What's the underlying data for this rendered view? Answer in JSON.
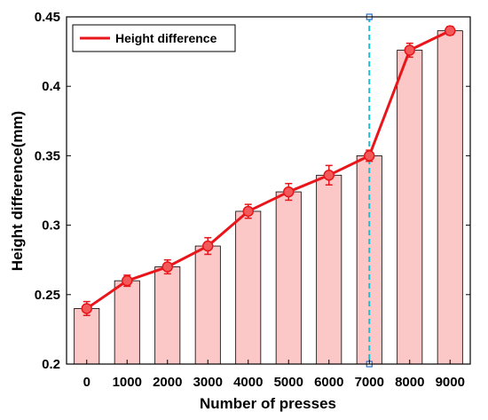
{
  "chart_data": {
    "type": "bar",
    "categories": [
      "0",
      "1000",
      "2000",
      "3000",
      "4000",
      "5000",
      "6000",
      "7000",
      "8000",
      "9000"
    ],
    "values": [
      0.24,
      0.26,
      0.27,
      0.285,
      0.31,
      0.324,
      0.336,
      0.35,
      0.426,
      0.44
    ],
    "error_bars": [
      0.005,
      0.004,
      0.005,
      0.006,
      0.005,
      0.006,
      0.007,
      0.004,
      0.005,
      0.003
    ],
    "series": [
      {
        "name": "Height difference",
        "values": [
          0.24,
          0.26,
          0.27,
          0.285,
          0.31,
          0.324,
          0.336,
          0.35,
          0.426,
          0.44
        ]
      }
    ],
    "xlabel": "Number of presses",
    "ylabel": "Height difference(mm)",
    "ylim": [
      0.2,
      0.45
    ],
    "yticks": [
      "0.2",
      "0.25",
      "0.3",
      "0.35",
      "0.4",
      "0.45"
    ],
    "grid": false,
    "legend_position": "top-left",
    "vertical_marker_category": "7000",
    "colors": {
      "bar_fill": "#fcc7c7",
      "bar_stroke": "#000000",
      "line": "#e8161b",
      "marker_fill": "#f25a5a",
      "vertical_marker": "#19bfd6"
    }
  }
}
